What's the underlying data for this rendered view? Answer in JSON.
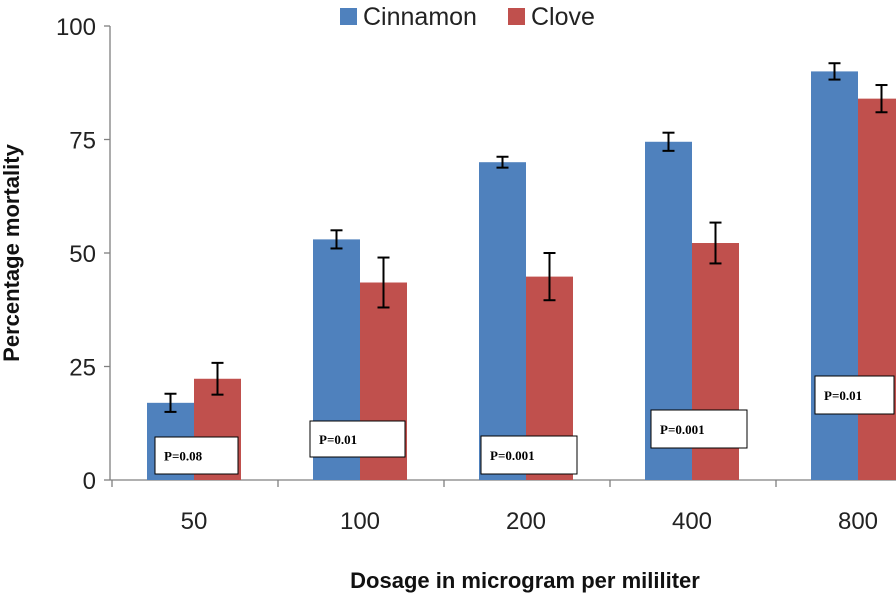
{
  "chart_data": {
    "type": "bar",
    "xlabel": "Dosage in microgram per mililiter",
    "ylabel": "Percentage mortality",
    "ylim": [
      0,
      100
    ],
    "yticks": [
      0,
      25,
      50,
      75,
      100
    ],
    "categories": [
      "50",
      "100",
      "200",
      "400",
      "800"
    ],
    "legend_position": "top",
    "grid": false,
    "series": [
      {
        "name": "Cinnamon",
        "color": "#4F81BD",
        "values": [
          17,
          53,
          70,
          74.5,
          90
        ],
        "errors": [
          2,
          2,
          1.2,
          2,
          1.8
        ]
      },
      {
        "name": "Clove",
        "color": "#C0504D",
        "values": [
          22.3,
          43.5,
          44.8,
          52.2,
          84
        ],
        "errors": [
          3.5,
          5.5,
          5.2,
          4.5,
          3
        ]
      }
    ],
    "annotations": [
      "P=0.08",
      "P=0.01",
      "P=0.001",
      "P=0.001",
      "P=0.01"
    ]
  }
}
